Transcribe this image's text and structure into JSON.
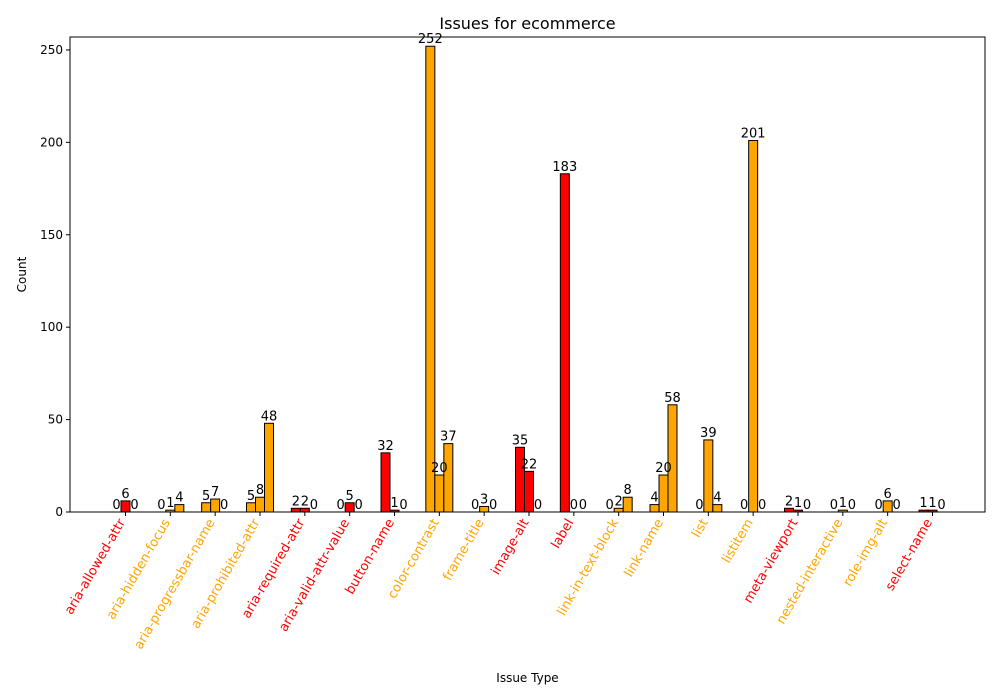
{
  "chart_data": {
    "type": "bar",
    "title": "Issues for ecommerce",
    "xlabel": "Issue Type",
    "ylabel": "Count",
    "ylim": [
      0,
      257
    ],
    "yticks": [
      0,
      50,
      100,
      150,
      200,
      250
    ],
    "grid": false,
    "colors": {
      "critical": "#ff0000",
      "serious": "#ffa500",
      "edge": "#000000"
    },
    "categories": [
      {
        "name": "aria-allowed-attr",
        "label_color": "#ff0000",
        "bars": [
          {
            "value": 0,
            "color": "#ffa500"
          },
          {
            "value": 6,
            "color": "#ff0000"
          },
          {
            "value": 0,
            "color": "#ffa500"
          }
        ]
      },
      {
        "name": "aria-hidden-focus",
        "label_color": "#ffa500",
        "bars": [
          {
            "value": 0,
            "color": "#ffa500"
          },
          {
            "value": 1,
            "color": "#ffa500"
          },
          {
            "value": 4,
            "color": "#ffa500"
          }
        ]
      },
      {
        "name": "aria-progressbar-name",
        "label_color": "#ffa500",
        "bars": [
          {
            "value": 5,
            "color": "#ffa500"
          },
          {
            "value": 7,
            "color": "#ffa500"
          },
          {
            "value": 0,
            "color": "#ffa500"
          }
        ]
      },
      {
        "name": "aria-prohibited-attr",
        "label_color": "#ffa500",
        "bars": [
          {
            "value": 5,
            "color": "#ffa500"
          },
          {
            "value": 8,
            "color": "#ffa500"
          },
          {
            "value": 48,
            "color": "#ffa500"
          }
        ]
      },
      {
        "name": "aria-required-attr",
        "label_color": "#ff0000",
        "bars": [
          {
            "value": 2,
            "color": "#ff0000"
          },
          {
            "value": 2,
            "color": "#ff0000"
          },
          {
            "value": 0,
            "color": "#ff0000"
          }
        ]
      },
      {
        "name": "aria-valid-attr-value",
        "label_color": "#ff0000",
        "bars": [
          {
            "value": 0,
            "color": "#ff0000"
          },
          {
            "value": 5,
            "color": "#ff0000"
          },
          {
            "value": 0,
            "color": "#ff0000"
          }
        ]
      },
      {
        "name": "button-name",
        "label_color": "#ff0000",
        "bars": [
          {
            "value": 32,
            "color": "#ff0000"
          },
          {
            "value": 1,
            "color": "#ff0000"
          },
          {
            "value": 0,
            "color": "#ff0000"
          }
        ]
      },
      {
        "name": "color-contrast",
        "label_color": "#ffa500",
        "bars": [
          {
            "value": 252,
            "color": "#ffa500"
          },
          {
            "value": 20,
            "color": "#ffa500"
          },
          {
            "value": 37,
            "color": "#ffa500"
          }
        ]
      },
      {
        "name": "frame-title",
        "label_color": "#ffa500",
        "bars": [
          {
            "value": 0,
            "color": "#ffa500"
          },
          {
            "value": 3,
            "color": "#ffa500"
          },
          {
            "value": 0,
            "color": "#ffa500"
          }
        ]
      },
      {
        "name": "image-alt",
        "label_color": "#ff0000",
        "bars": [
          {
            "value": 35,
            "color": "#ff0000"
          },
          {
            "value": 22,
            "color": "#ff0000"
          },
          {
            "value": 0,
            "color": "#ff0000"
          }
        ]
      },
      {
        "name": "label",
        "label_color": "#ff0000",
        "bars": [
          {
            "value": 183,
            "color": "#ff0000"
          },
          {
            "value": 0,
            "color": "#ff0000"
          },
          {
            "value": 0,
            "color": "#ff0000"
          }
        ]
      },
      {
        "name": "link-in-text-block",
        "label_color": "#ffa500",
        "bars": [
          {
            "value": 0,
            "color": "#ffa500"
          },
          {
            "value": 2,
            "color": "#ffa500"
          },
          {
            "value": 8,
            "color": "#ffa500"
          }
        ]
      },
      {
        "name": "link-name",
        "label_color": "#ffa500",
        "bars": [
          {
            "value": 4,
            "color": "#ffa500"
          },
          {
            "value": 20,
            "color": "#ffa500"
          },
          {
            "value": 58,
            "color": "#ffa500"
          }
        ]
      },
      {
        "name": "list",
        "label_color": "#ffa500",
        "bars": [
          {
            "value": 0,
            "color": "#ffa500"
          },
          {
            "value": 39,
            "color": "#ffa500"
          },
          {
            "value": 4,
            "color": "#ffa500"
          }
        ]
      },
      {
        "name": "listitem",
        "label_color": "#ffa500",
        "bars": [
          {
            "value": 0,
            "color": "#ffa500"
          },
          {
            "value": 201,
            "color": "#ffa500"
          },
          {
            "value": 0,
            "color": "#ffa500"
          }
        ]
      },
      {
        "name": "meta-viewport",
        "label_color": "#ff0000",
        "bars": [
          {
            "value": 2,
            "color": "#ff0000"
          },
          {
            "value": 1,
            "color": "#ff0000"
          },
          {
            "value": 0,
            "color": "#ff0000"
          }
        ]
      },
      {
        "name": "nested-interactive",
        "label_color": "#ffa500",
        "bars": [
          {
            "value": 0,
            "color": "#ffa500"
          },
          {
            "value": 1,
            "color": "#ffa500"
          },
          {
            "value": 0,
            "color": "#ffa500"
          }
        ]
      },
      {
        "name": "role-img-alt",
        "label_color": "#ffa500",
        "bars": [
          {
            "value": 0,
            "color": "#ffa500"
          },
          {
            "value": 6,
            "color": "#ffa500"
          },
          {
            "value": 0,
            "color": "#ffa500"
          }
        ]
      },
      {
        "name": "select-name",
        "label_color": "#ff0000",
        "bars": [
          {
            "value": 1,
            "color": "#ff0000"
          },
          {
            "value": 1,
            "color": "#ff0000"
          },
          {
            "value": 0,
            "color": "#ff0000"
          }
        ]
      }
    ]
  }
}
